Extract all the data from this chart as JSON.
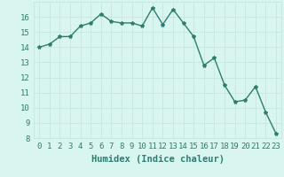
{
  "x": [
    0,
    1,
    2,
    3,
    4,
    5,
    6,
    7,
    8,
    9,
    10,
    11,
    12,
    13,
    14,
    15,
    16,
    17,
    18,
    19,
    20,
    21,
    22,
    23
  ],
  "y": [
    14.0,
    14.2,
    14.7,
    14.7,
    15.4,
    15.6,
    16.2,
    15.7,
    15.6,
    15.6,
    15.4,
    16.6,
    15.5,
    16.5,
    15.6,
    14.7,
    12.8,
    13.3,
    11.5,
    10.4,
    10.5,
    11.4,
    9.7,
    8.3
  ],
  "line_color": "#2e7d6e",
  "marker": "*",
  "marker_size": 3,
  "bg_color": "#d8f5f0",
  "grid_color": "#c8e8e2",
  "xlabel": "Humidex (Indice chaleur)",
  "xlim": [
    -0.5,
    23.5
  ],
  "ylim": [
    8,
    17
  ],
  "yticks": [
    8,
    9,
    10,
    11,
    12,
    13,
    14,
    15,
    16
  ],
  "xticks": [
    0,
    1,
    2,
    3,
    4,
    5,
    6,
    7,
    8,
    9,
    10,
    11,
    12,
    13,
    14,
    15,
    16,
    17,
    18,
    19,
    20,
    21,
    22,
    23
  ],
  "xtick_labels": [
    "0",
    "1",
    "2",
    "3",
    "4",
    "5",
    "6",
    "7",
    "8",
    "9",
    "10",
    "11",
    "12",
    "13",
    "14",
    "15",
    "16",
    "17",
    "18",
    "19",
    "20",
    "21",
    "22",
    "23"
  ],
  "tick_fontsize": 6.5,
  "label_fontsize": 7.5
}
